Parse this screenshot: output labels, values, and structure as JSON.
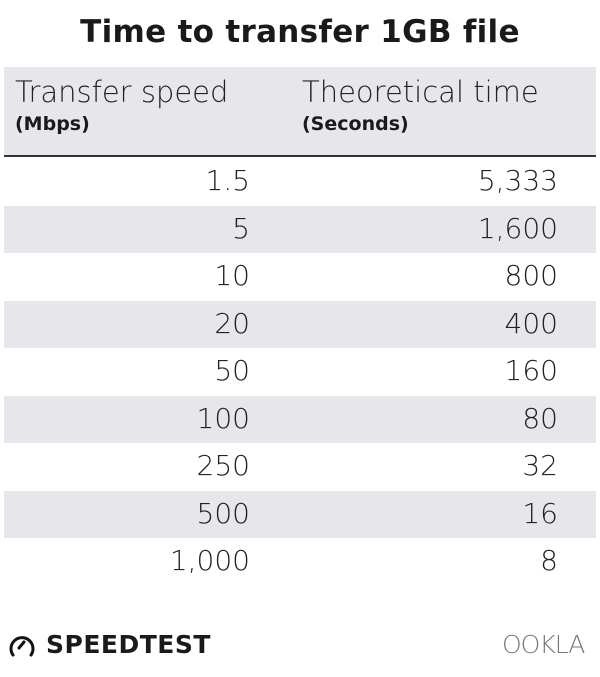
{
  "chart_data": {
    "type": "table",
    "title": "Time to transfer 1GB file",
    "columns": [
      {
        "label": "Transfer speed",
        "unit": "(Mbps)"
      },
      {
        "label": "Theoretical time",
        "unit": "(Seconds)"
      }
    ],
    "rows": [
      [
        "1.5",
        "5,333"
      ],
      [
        "5",
        "1,600"
      ],
      [
        "10",
        "800"
      ],
      [
        "20",
        "400"
      ],
      [
        "50",
        "160"
      ],
      [
        "100",
        "80"
      ],
      [
        "250",
        "32"
      ],
      [
        "500",
        "16"
      ],
      [
        "1,000",
        "8"
      ]
    ],
    "row_band_color": "#e7e7eb"
  },
  "footer": {
    "brand": "SPEEDTEST",
    "brand_icon": "gauge-icon",
    "partner_logo": "OOKLA"
  }
}
